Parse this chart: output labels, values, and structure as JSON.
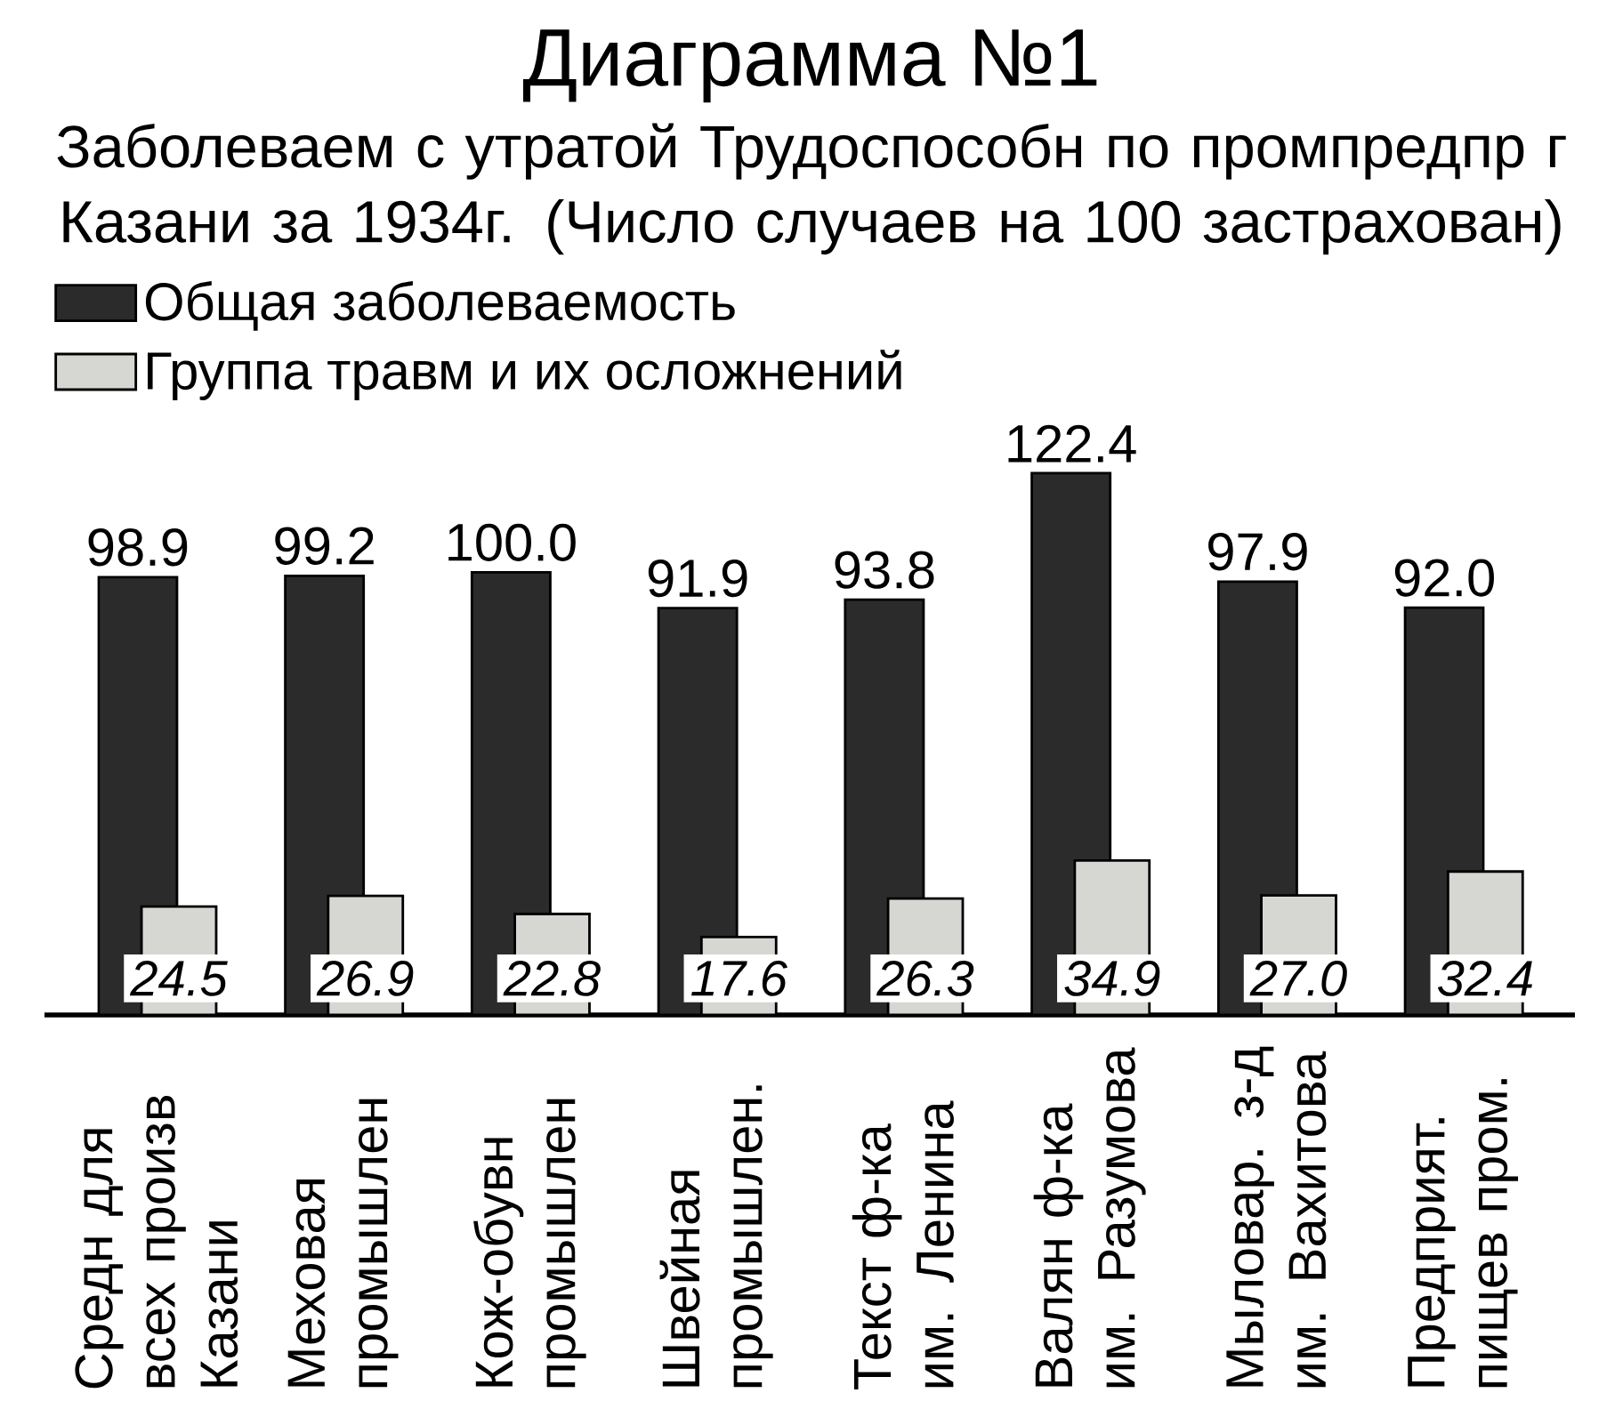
{
  "chart_data": {
    "type": "bar",
    "title": "Диаграмма №1",
    "subtitle": "Заболеваем с утратой Трудоспособн по промпредпр г Казани за 1934г. (Число случаев на 100 застрахован)",
    "categories": [
      "Средн для всех произв Казани",
      "Меховая промышлен",
      "Кож-обувн промышлен",
      "Швейная промышлен.",
      "Текст ф-ка им. Ленина",
      "Валян ф-ка им. Разумова",
      "Мыловар. з-д им. Вахитова",
      "Предприят. пищев пром."
    ],
    "series": [
      {
        "name": "Общая заболеваемость",
        "color": "#2b2b2b",
        "values": [
          98.9,
          99.2,
          100.0,
          91.9,
          93.8,
          122.4,
          97.9,
          92.0
        ],
        "value_labels": [
          "98.9",
          "99.2",
          "100.0",
          "91.9",
          "93.8",
          "122.4",
          "97.9",
          "92.0"
        ]
      },
      {
        "name": "Группа травм и их осложнений",
        "color": "#d6d6d2",
        "values": [
          24.5,
          26.9,
          22.8,
          17.6,
          26.3,
          34.9,
          27.0,
          32.4
        ],
        "value_labels": [
          "24.5",
          "26.9",
          "22.8",
          "17.6",
          "26.3",
          "34.9",
          "27.0",
          "32.4"
        ]
      }
    ],
    "legend": "top left"
  }
}
